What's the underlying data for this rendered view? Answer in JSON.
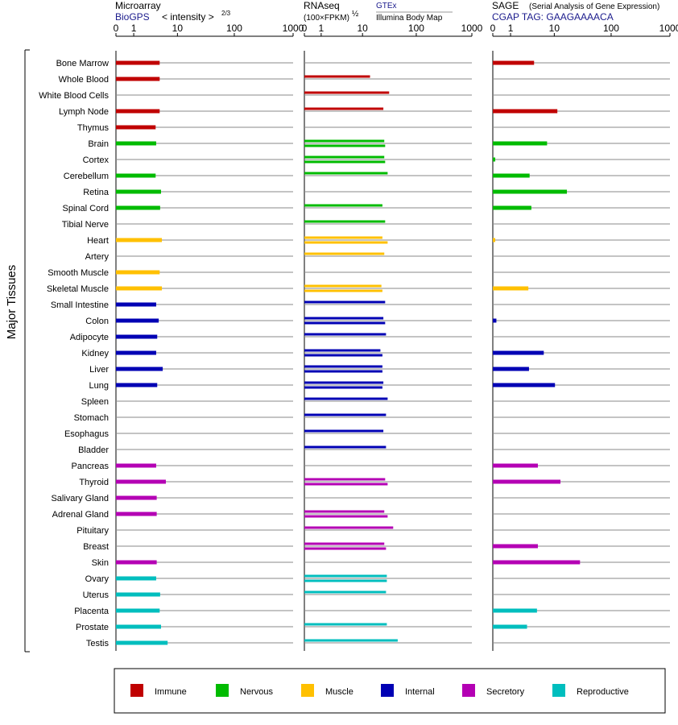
{
  "header": {
    "microarray_title": "Microarray",
    "microarray_source": "BioGPS",
    "microarray_unit": "< intensity >",
    "microarray_unit_exp": "2/3",
    "rnaseq_title": "RNAseq",
    "rnaseq_unit": "(100×FPKM)",
    "rnaseq_unit_exp": "½",
    "rnaseq_source_gtex": "GTEx",
    "rnaseq_source_ibm": "Illumina Body Map",
    "sage_title": "SAGE",
    "sage_desc": "(Serial Analysis of Gene Expression)",
    "sage_tag": "CGAP TAG: GAAGAAAACA"
  },
  "colors": {
    "Immune": "#c00000",
    "Nervous": "#00bb00",
    "Muscle": "#ffc000",
    "Internal": "#0000b4",
    "Secretory": "#b400b4",
    "Reproductive": "#00bebe",
    "panel_line": "#000000",
    "row_line": "#8a8a8a"
  },
  "chart_data": {
    "type": "bar",
    "y_axis_label": "Major Tissues",
    "x_axis_ticks": [
      "0",
      "1",
      "10",
      "100",
      "1000"
    ],
    "x_scale": "log10(value+1), range 0-1000",
    "categories": [
      "Bone Marrow",
      "Whole Blood",
      "White Blood Cells",
      "Lymph Node",
      "Thymus",
      "Brain",
      "Cortex",
      "Cerebellum",
      "Retina",
      "Spinal Cord",
      "Tibial Nerve",
      "Heart",
      "Artery",
      "Smooth Muscle",
      "Skeletal Muscle",
      "Small Intestine",
      "Colon",
      "Adipocyte",
      "Kidney",
      "Liver",
      "Lung",
      "Spleen",
      "Stomach",
      "Esophagus",
      "Bladder",
      "Pancreas",
      "Thyroid",
      "Salivary Gland",
      "Adrenal Gland",
      "Pituitary",
      "Breast",
      "Skin",
      "Ovary",
      "Uterus",
      "Placenta",
      "Prostate",
      "Testis"
    ],
    "systems": [
      "Immune",
      "Immune",
      "Immune",
      "Immune",
      "Immune",
      "Nervous",
      "Nervous",
      "Nervous",
      "Nervous",
      "Nervous",
      "Nervous",
      "Muscle",
      "Muscle",
      "Muscle",
      "Muscle",
      "Internal",
      "Internal",
      "Internal",
      "Internal",
      "Internal",
      "Internal",
      "Internal",
      "Internal",
      "Internal",
      "Internal",
      "Secretory",
      "Secretory",
      "Secretory",
      "Secretory",
      "Secretory",
      "Secretory",
      "Secretory",
      "Reproductive",
      "Reproductive",
      "Reproductive",
      "Reproductive",
      "Reproductive"
    ],
    "series": [
      {
        "values": [
          4.5,
          4.5,
          null,
          4.5,
          3.7,
          3.8,
          null,
          3.7,
          4.8,
          4.6,
          null,
          5.0,
          null,
          4.5,
          5.0,
          3.8,
          4.3,
          4.0,
          3.8,
          5.2,
          4.0,
          null,
          null,
          null,
          null,
          3.8,
          6.0,
          3.9,
          3.9,
          null,
          null,
          3.9,
          3.8,
          4.6,
          4.5,
          4.8,
          6.5
        ]
      },
      {
        "gtex": [
          null,
          null,
          null,
          null,
          null,
          26,
          26,
          null,
          null,
          null,
          null,
          24,
          26,
          null,
          23,
          27,
          25,
          null,
          22,
          24,
          25,
          null,
          null,
          null,
          null,
          null,
          27,
          null,
          26,
          null,
          26,
          null,
          29,
          null,
          null,
          null,
          null
        ],
        "ibm": [
          null,
          14,
          32,
          25,
          null,
          27,
          27,
          30,
          null,
          24,
          27,
          30,
          null,
          null,
          24,
          null,
          27,
          28,
          24,
          24,
          24,
          30,
          28,
          25,
          28,
          null,
          30,
          null,
          30,
          38,
          28,
          null,
          29,
          28,
          null,
          29,
          46
        ]
      },
      {
        "values": [
          4.0,
          null,
          null,
          11.4,
          null,
          7.3,
          0.1,
          3.2,
          17.0,
          3.5,
          null,
          0.1,
          null,
          null,
          3.0,
          null,
          0.15,
          null,
          6.3,
          3.1,
          10.3,
          null,
          null,
          null,
          null,
          4.8,
          13.0,
          null,
          null,
          null,
          4.8,
          29.0,
          null,
          null,
          4.6,
          2.8,
          null
        ]
      }
    ]
  },
  "legend": [
    {
      "label": "Immune"
    },
    {
      "label": "Nervous"
    },
    {
      "label": "Muscle"
    },
    {
      "label": "Internal"
    },
    {
      "label": "Secretory"
    },
    {
      "label": "Reproductive"
    }
  ]
}
